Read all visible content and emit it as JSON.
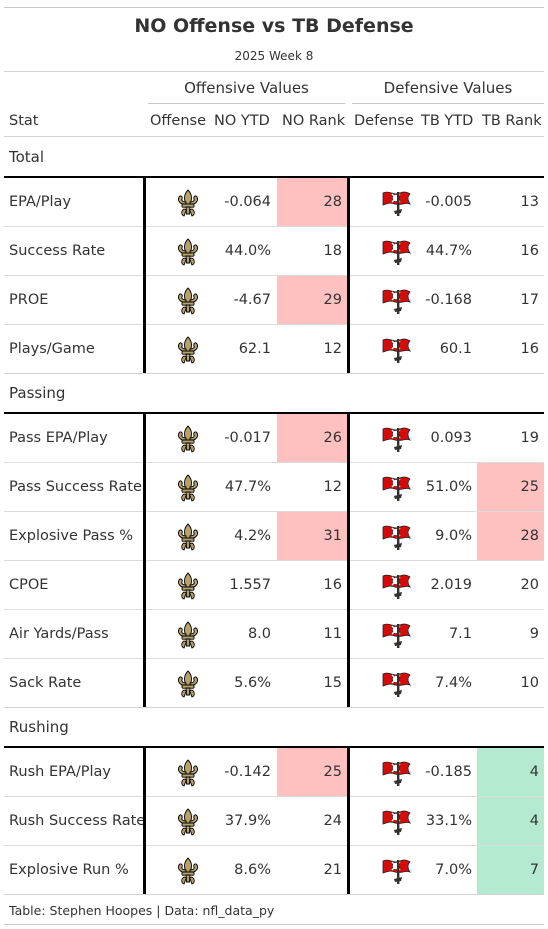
{
  "header": {
    "title": "NO Offense vs TB Defense",
    "subtitle": "2025 Week 8",
    "spanner_offense": "Offensive Values",
    "spanner_defense": "Defensive Values"
  },
  "columns": [
    "Stat",
    "Offense",
    "NO YTD",
    "NO Rank",
    "Defense",
    "TB YTD",
    "TB Rank"
  ],
  "colors": {
    "bad_rank": "#ffc0c0",
    "good_rank": "#b4ead0",
    "saints_gold": "#b7a26e",
    "bucs_red": "#d50a0a",
    "bucs_pewter": "#34302b"
  },
  "icons": {
    "offense_logo": "fleur-de-lis-icon",
    "defense_logo": "buccaneers-flag-icon"
  },
  "chart_data": {
    "type": "table",
    "groups": [
      {
        "name": "Total",
        "rows": [
          {
            "stat": "EPA/Play",
            "no_ytd": "-0.064",
            "no_rank": "28",
            "no_rank_hl": "bad",
            "tb_ytd": "-0.005",
            "tb_rank": "13",
            "tb_rank_hl": ""
          },
          {
            "stat": "Success Rate",
            "no_ytd": "44.0%",
            "no_rank": "18",
            "no_rank_hl": "",
            "tb_ytd": "44.7%",
            "tb_rank": "16",
            "tb_rank_hl": ""
          },
          {
            "stat": "PROE",
            "no_ytd": "-4.67",
            "no_rank": "29",
            "no_rank_hl": "bad",
            "tb_ytd": "-0.168",
            "tb_rank": "17",
            "tb_rank_hl": ""
          },
          {
            "stat": "Plays/Game",
            "no_ytd": "62.1",
            "no_rank": "12",
            "no_rank_hl": "",
            "tb_ytd": "60.1",
            "tb_rank": "16",
            "tb_rank_hl": ""
          }
        ]
      },
      {
        "name": "Passing",
        "rows": [
          {
            "stat": "Pass EPA/Play",
            "no_ytd": "-0.017",
            "no_rank": "26",
            "no_rank_hl": "bad",
            "tb_ytd": "0.093",
            "tb_rank": "19",
            "tb_rank_hl": ""
          },
          {
            "stat": "Pass Success Rate",
            "no_ytd": "47.7%",
            "no_rank": "12",
            "no_rank_hl": "",
            "tb_ytd": "51.0%",
            "tb_rank": "25",
            "tb_rank_hl": "bad"
          },
          {
            "stat": "Explosive Pass %",
            "no_ytd": "4.2%",
            "no_rank": "31",
            "no_rank_hl": "bad",
            "tb_ytd": "9.0%",
            "tb_rank": "28",
            "tb_rank_hl": "bad"
          },
          {
            "stat": "CPOE",
            "no_ytd": "1.557",
            "no_rank": "16",
            "no_rank_hl": "",
            "tb_ytd": "2.019",
            "tb_rank": "20",
            "tb_rank_hl": ""
          },
          {
            "stat": "Air Yards/Pass",
            "no_ytd": "8.0",
            "no_rank": "11",
            "no_rank_hl": "",
            "tb_ytd": "7.1",
            "tb_rank": "9",
            "tb_rank_hl": ""
          },
          {
            "stat": "Sack Rate",
            "no_ytd": "5.6%",
            "no_rank": "15",
            "no_rank_hl": "",
            "tb_ytd": "7.4%",
            "tb_rank": "10",
            "tb_rank_hl": ""
          }
        ]
      },
      {
        "name": "Rushing",
        "rows": [
          {
            "stat": "Rush EPA/Play",
            "no_ytd": "-0.142",
            "no_rank": "25",
            "no_rank_hl": "bad",
            "tb_ytd": "-0.185",
            "tb_rank": "4",
            "tb_rank_hl": "good"
          },
          {
            "stat": "Rush Success Rate",
            "no_ytd": "37.9%",
            "no_rank": "24",
            "no_rank_hl": "",
            "tb_ytd": "33.1%",
            "tb_rank": "4",
            "tb_rank_hl": "good"
          },
          {
            "stat": "Explosive Run %",
            "no_ytd": "8.6%",
            "no_rank": "21",
            "no_rank_hl": "",
            "tb_ytd": "7.0%",
            "tb_rank": "7",
            "tb_rank_hl": "good"
          }
        ]
      }
    ]
  },
  "footer": "Table: Stephen Hoopes | Data: nfl_data_py"
}
